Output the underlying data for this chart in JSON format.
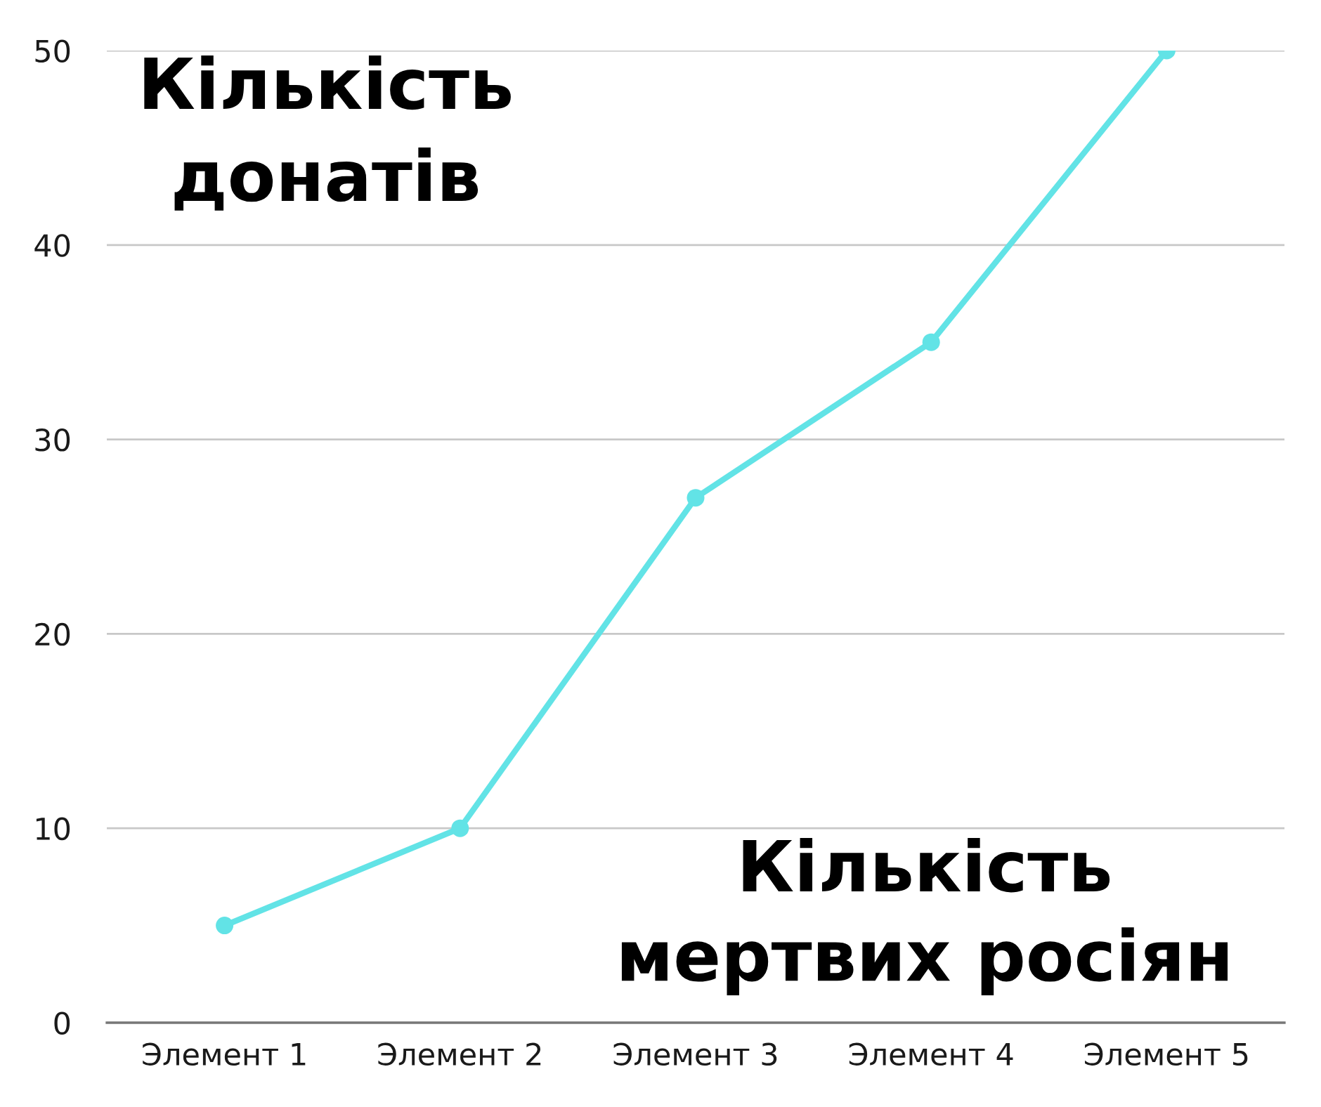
{
  "chart_data": {
    "type": "line",
    "categories": [
      "Элемент 1",
      "Элемент 2",
      "Элемент 3",
      "Элемент 4",
      "Элемент 5"
    ],
    "series": [
      {
        "color": "#62e3e6",
        "values": [
          5,
          10,
          27,
          35,
          50
        ]
      }
    ],
    "xlabel": "Кількість\nмертвих росіян",
    "ylabel": "Кількість\nдонатів",
    "ylim": [
      0,
      50
    ],
    "yticks": [
      0,
      10,
      20,
      30,
      40,
      50
    ],
    "grid": "y",
    "marker": "circle",
    "line_style": "solid"
  }
}
